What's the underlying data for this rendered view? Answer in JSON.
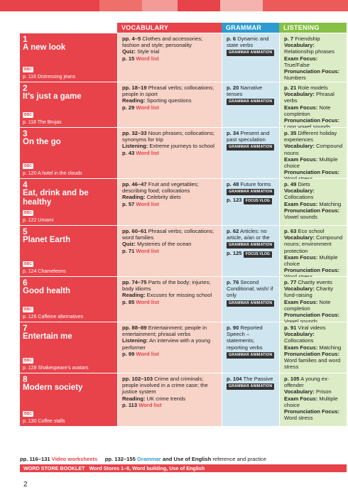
{
  "colors": {
    "red": "#e8424a",
    "blue": "#2e9bd0",
    "green": "#86c044",
    "pink_cell": "#f8d3c7",
    "blue_cell": "#cfe6f1",
    "green_cell": "#dcecc6"
  },
  "headers": {
    "vocabulary": "VOCABULARY",
    "grammar": "GRAMMAR",
    "listening": "LISTENING"
  },
  "badges": {
    "bbc": "BBC",
    "grammar_animation": "GRAMMAR ANIMATION",
    "focus_vlog": "FOCUS VLOG"
  },
  "units": [
    {
      "num": "1",
      "title": "A new look",
      "bbc": "p. 116 Distressing jeans",
      "vocab": [
        {
          "b": "pp. 4–5",
          "t": " Clothes and accessories; fashion and style; personality"
        },
        {
          "b": "Quiz:",
          "t": " Style trial"
        },
        {
          "b": "p. 15",
          "wl": " Word list"
        }
      ],
      "gram": {
        "b": "p. 6",
        "t": " Dynamic and state verbs",
        "anim": true
      },
      "list": [
        {
          "b": "p. 7",
          "t": " Friendship"
        },
        {
          "b": "Vocabulary:",
          "t": " Relationship phrases"
        },
        {
          "b": "Exam Focus:",
          "t": " True/False"
        },
        {
          "b": "Pronunciation Focus:",
          "t": " Numbers"
        }
      ]
    },
    {
      "num": "2",
      "title": "It’s just a game",
      "bbc": "p. 118 The Brujas",
      "vocab": [
        {
          "b": "pp. 18–19",
          "t": " Phrasal verbs; collocations; people in sport"
        },
        {
          "b": "Reading:",
          "t": " Sporting questions"
        },
        {
          "b": "p. 29",
          "wl": " Word list"
        }
      ],
      "gram": {
        "b": "p. 20",
        "t": " Narrative tenses",
        "anim": true
      },
      "list": [
        {
          "b": "p. 21",
          "t": " Role models"
        },
        {
          "b": "Vocabulary:",
          "t": " Phrasal verbs"
        },
        {
          "b": "Exam Focus:",
          "t": " Note completion"
        },
        {
          "b": "Pronunciation Focus:",
          "t": " Long vowel sounds"
        }
      ]
    },
    {
      "num": "3",
      "title": "On the go",
      "bbc": "p. 120 A hotel in the clouds",
      "vocab": [
        {
          "b": "pp. 32–33",
          "t": " Noun phrases; collocations; synonyms for trip"
        },
        {
          "b": "Listening:",
          "t": " Extreme journeys to school"
        },
        {
          "b": "p. 43",
          "wl": " Word list"
        }
      ],
      "gram": {
        "b": "p. 34",
        "t": " Present and past speculation",
        "anim": true
      },
      "list": [
        {
          "b": "p. 35",
          "t": " Different holiday experiences"
        },
        {
          "b": "Vocabulary:",
          "t": " Compound nouns"
        },
        {
          "b": "Exam Focus:",
          "t": " Multiple choice"
        },
        {
          "b": "Pronunciation Focus:",
          "t": " Word stress"
        }
      ]
    },
    {
      "num": "4",
      "title": "Eat, drink and be healthy",
      "bbc": "p. 122 Umami",
      "vocab": [
        {
          "b": "pp. 46–47",
          "t": " Fruit and vegetables; describing food; collocations"
        },
        {
          "b": "Reading:",
          "t": " Celebrity diets"
        },
        {
          "b": "p. 57",
          "wl": " Word list"
        }
      ],
      "gram": {
        "b": "p. 48",
        "t": " Future forms",
        "anim": true,
        "vlog": "p. 123"
      },
      "list": [
        {
          "b": "p. 49",
          "t": " Diets"
        },
        {
          "b": "Vocabulary:",
          "t": " Collocations"
        },
        {
          "b": "Exam Focus:",
          "t": " Matching"
        },
        {
          "b": "Pronunciation Focus:",
          "t": " Vowel sounds"
        }
      ]
    },
    {
      "num": "5",
      "title": "Planet Earth",
      "bbc": "p. 124 Chameleons",
      "vocab": [
        {
          "b": "pp. 60–61",
          "t": " Phrasal verbs; collocations; word families"
        },
        {
          "b": "Quiz:",
          "t": " Mysteries of the ocean"
        },
        {
          "b": "p. 71",
          "wl": " Word list"
        }
      ],
      "gram": {
        "b": "p. 62",
        "t": " Articles: no article, a/an or the",
        "anim": true,
        "vlog": "p. 125"
      },
      "list": [
        {
          "b": "p. 63",
          "t": " Eco school"
        },
        {
          "b": "Vocabulary:",
          "t": " Compound nouns; environment protection"
        },
        {
          "b": "Exam Focus:",
          "t": " Multiple choice"
        },
        {
          "b": "Pronunciation Focus:",
          "t": " Word stress"
        }
      ]
    },
    {
      "num": "6",
      "title": "Good health",
      "bbc": "p. 126 Caffeine alternatives",
      "vocab": [
        {
          "b": "pp. 74–75",
          "t": " Parts of the body; injuries; body idioms"
        },
        {
          "b": "Reading:",
          "t": " Excuses for missing school"
        },
        {
          "b": "p. 85",
          "wl": " Word list"
        }
      ],
      "gram": {
        "b": "p. 76",
        "t": " Second Conditional; wish/ if only",
        "anim": true
      },
      "list": [
        {
          "b": "p. 77",
          "t": " Charity events"
        },
        {
          "b": "Vocabulary:",
          "t": " Charity fund-raising"
        },
        {
          "b": "Exam Focus:",
          "t": " Note completion"
        },
        {
          "b": "Pronunciation Focus:",
          "t": " Vowel sounds"
        }
      ]
    },
    {
      "num": "7",
      "title": "Entertain me",
      "bbc": "p. 128 Shakespeare’s avatars",
      "vocab": [
        {
          "b": "pp. 88–89",
          "t": " Entertainment; people in entertainment; phrasal verbs"
        },
        {
          "b": "Listening:",
          "t": " An interview with a young performer"
        },
        {
          "b": "p. 99",
          "wl": " Word list"
        }
      ],
      "gram": {
        "b": "p. 90",
        "t": " Reported Speech – statements; reporting verbs",
        "anim": true
      },
      "list": [
        {
          "b": "p. 91",
          "t": " Viral videos"
        },
        {
          "b": "Vocabulary:",
          "t": " Collocations"
        },
        {
          "b": "Exam Focus:",
          "t": " Matching"
        },
        {
          "b": "Pronunciation Focus:",
          "t": " Word families and word stress"
        }
      ]
    },
    {
      "num": "8",
      "title": "Modern society",
      "bbc": "p. 130 Coffee stalls",
      "vocab": [
        {
          "b": "pp. 102–103",
          "t": " Crime and criminals; people involved in a crime case; the justice system"
        },
        {
          "b": "Reading:",
          "t": " UK crime trends"
        },
        {
          "b": "p. 113",
          "wl": " Word list"
        }
      ],
      "gram": {
        "b": "p. 104",
        "t": " The Passive",
        "anim": true
      },
      "list": [
        {
          "b": "p. 105",
          "t": " A young ex-offender"
        },
        {
          "b": "Vocabulary:",
          "t": " Prison"
        },
        {
          "b": "Exam Focus:",
          "t": " Multiple choice"
        },
        {
          "b": "Pronunciation Focus:",
          "t": " Word stress"
        }
      ]
    }
  ],
  "footer": {
    "video_pages": "pp. 116–131",
    "video_label": "Video worksheets",
    "grammar_pages": "pp. 132–155",
    "grammar_word": "Grammar",
    "and1": "and",
    "use_english": "Use of English",
    "reference": "reference and practice",
    "wsb_title": "WORD STORE BOOKLET",
    "wsb_text": "Word Stores 1–8, Word building, Use of English"
  },
  "page_number": "2"
}
